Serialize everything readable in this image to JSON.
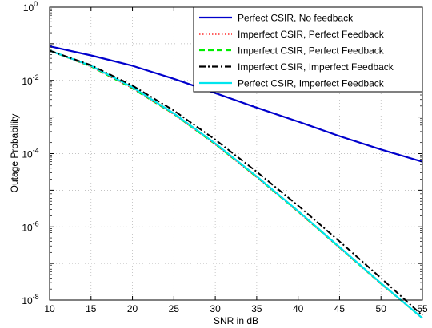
{
  "chart_data": {
    "type": "line",
    "xlabel": "SNR in dB",
    "ylabel": "Outage Probability",
    "xlim": [
      10,
      55
    ],
    "ylim": [
      1e-08,
      1
    ],
    "yscale": "log",
    "xticks": [
      10,
      15,
      20,
      25,
      30,
      35,
      40,
      45,
      50,
      55
    ],
    "yticks": [
      {
        "base": "10",
        "exp": "0",
        "value": 1
      },
      {
        "base": "10",
        "exp": "-2",
        "value": 0.01
      },
      {
        "base": "10",
        "exp": "-4",
        "value": 0.0001
      },
      {
        "base": "10",
        "exp": "-6",
        "value": 1e-06
      },
      {
        "base": "10",
        "exp": "-8",
        "value": 1e-08
      }
    ],
    "grid": true,
    "legend_position": "top-right",
    "x": [
      10,
      15,
      20,
      25,
      30,
      35,
      40,
      45,
      50,
      55
    ],
    "series": [
      {
        "name": "Perfect CSIR, No feedback",
        "color": "#0000cc",
        "style": "solid",
        "values": [
          0.085,
          0.048,
          0.025,
          0.011,
          0.0045,
          0.0018,
          0.00075,
          0.0003,
          0.00013,
          6e-05
        ]
      },
      {
        "name": "Imperfect CSIR, Perfect Feedback",
        "color": "#ff0000",
        "style": "dotted",
        "values": [
          0.065,
          0.024,
          0.0062,
          0.0012,
          0.00018,
          2.3e-05,
          2.6e-06,
          2.7e-07,
          2.8e-08,
          3.2e-09
        ]
      },
      {
        "name": "Imperfect CSIR, Perfect Feedback",
        "color": "#00ee00",
        "style": "dashed",
        "values": [
          0.065,
          0.024,
          0.006,
          0.0012,
          0.00018,
          2.3e-05,
          2.6e-06,
          2.7e-07,
          2.8e-08,
          3.2e-09
        ]
      },
      {
        "name": "Imperfect CSIR, Imperfect Feedback",
        "color": "#000000",
        "style": "dashdot",
        "values": [
          0.065,
          0.026,
          0.0072,
          0.0015,
          0.00024,
          3.2e-05,
          3.8e-06,
          4e-07,
          4e-08,
          3.8e-09
        ]
      },
      {
        "name": "Perfect CSIR, Imperfect Feedback",
        "color": "#00e5ee",
        "style": "solid",
        "values": [
          0.065,
          0.025,
          0.0065,
          0.00125,
          0.00019,
          2.4e-05,
          2.7e-06,
          2.8e-07,
          2.9e-08,
          3.2e-09
        ]
      }
    ]
  }
}
